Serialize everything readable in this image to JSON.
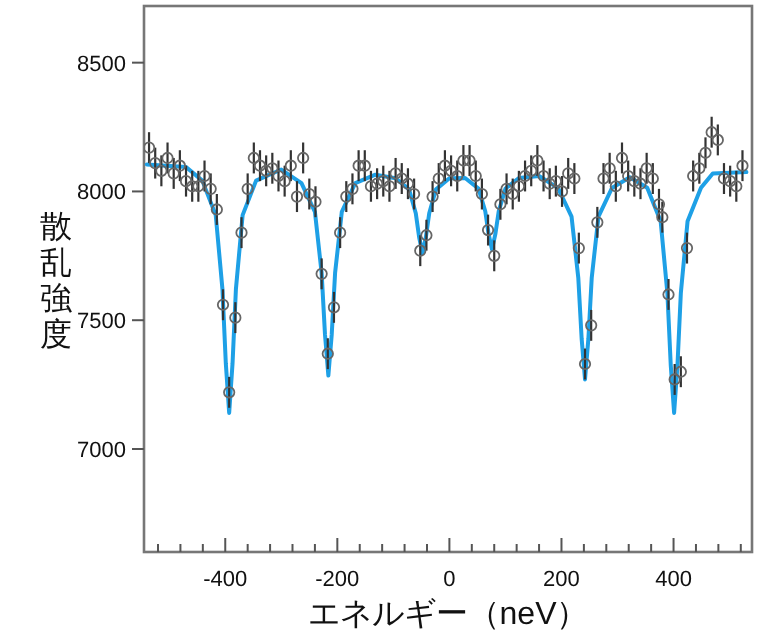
{
  "chart_data": {
    "type": "scatter",
    "xlabel": "エネルギー（neV）",
    "ylabel": "散乱強度",
    "xlim": [
      -545,
      540
    ],
    "ylim": [
      6600,
      8720
    ],
    "xticks": [
      {
        "value": -520,
        "label": null
      },
      {
        "value": -480,
        "label": null
      },
      {
        "value": -440,
        "label": null
      },
      -400,
      {
        "value": -360,
        "label": null
      },
      {
        "value": -320,
        "label": null
      },
      {
        "value": -280,
        "label": null
      },
      {
        "value": -240,
        "label": null
      },
      -200,
      {
        "value": -160,
        "label": null
      },
      {
        "value": -120,
        "label": null
      },
      {
        "value": -80,
        "label": null
      },
      {
        "value": -40,
        "label": null
      },
      0,
      {
        "value": 40,
        "label": null
      },
      {
        "value": 80,
        "label": null
      },
      {
        "value": 120,
        "label": null
      },
      {
        "value": 160,
        "label": null
      },
      200,
      {
        "value": 240,
        "label": null
      },
      {
        "value": 280,
        "label": null
      },
      {
        "value": 320,
        "label": null
      },
      {
        "value": 360,
        "label": null
      },
      400,
      {
        "value": 440,
        "label": null
      },
      {
        "value": 480,
        "label": null
      },
      {
        "value": 520,
        "label": null
      }
    ],
    "yticks": [
      7000,
      7500,
      8000,
      8500
    ],
    "grid": false,
    "series": [
      {
        "type": "line",
        "color": "#1ea0e6",
        "line_style": "solid",
        "marker": "none",
        "x": [
          -540,
          -470,
          -441,
          -417,
          -405,
          -399,
          -393,
          -387,
          -381,
          -369,
          -345,
          -300,
          -264,
          -240,
          -228,
          -222,
          -216,
          -210,
          -204,
          -192,
          -168,
          -132,
          -96,
          -72,
          -60,
          -54,
          -48,
          -42,
          -36,
          -24,
          0,
          28,
          52,
          64,
          70,
          76,
          82,
          88,
          100,
          124,
          160,
          194,
          218,
          230,
          236,
          242,
          248,
          254,
          266,
          290,
          322,
          353,
          377,
          389,
          395,
          401,
          407,
          413,
          425,
          449,
          470,
          530
        ],
        "values": [
          8105,
          8095,
          8042,
          7908,
          7620,
          7332,
          7140,
          7332,
          7620,
          7908,
          8042,
          8085,
          8032,
          7921,
          7683,
          7444,
          7285,
          7444,
          7683,
          7921,
          8032,
          8065,
          8051,
          8008,
          7915,
          7822,
          7760,
          7822,
          7915,
          8008,
          8051,
          8052,
          8011,
          7923,
          7834,
          7775,
          7834,
          7923,
          8011,
          8052,
          8060,
          8013,
          7902,
          7665,
          7428,
          7270,
          7428,
          7665,
          7902,
          8013,
          8055,
          8014,
          7884,
          7605,
          7326,
          7140,
          7326,
          7605,
          7884,
          8014,
          8070,
          8075
        ]
      },
      {
        "color": "#666666",
        "marker": "circle",
        "x": [
          -536,
          -525,
          -514,
          -503,
          -492,
          -481,
          -470,
          -459,
          -448,
          -437,
          -426,
          -415,
          -404,
          -393,
          -382,
          -371,
          -360,
          -349,
          -338,
          -327,
          -316,
          -305,
          -294,
          -283,
          -272,
          -261,
          -250,
          -239,
          -228,
          -217,
          -206,
          -195,
          -184,
          -173,
          -162,
          -151,
          -140,
          -129,
          -118,
          -107,
          -96,
          -85,
          -74,
          -63,
          -52,
          -41,
          -30,
          -19,
          -8,
          3,
          14,
          25,
          36,
          47,
          58,
          69,
          80,
          91,
          102,
          113,
          124,
          135,
          146,
          157,
          168,
          179,
          190,
          201,
          212,
          223,
          231,
          242,
          253,
          264,
          275,
          286,
          297,
          308,
          319,
          330,
          341,
          352,
          363,
          374,
          380,
          391,
          402,
          413,
          424,
          435,
          446,
          457,
          468,
          479,
          490,
          501,
          512,
          523
        ],
        "values": [
          8170,
          8110,
          8080,
          8130,
          8070,
          8100,
          8040,
          8020,
          8020,
          8060,
          8010,
          7930,
          7560,
          7220,
          7510,
          7840,
          8010,
          8130,
          8100,
          8080,
          8090,
          8060,
          8040,
          8100,
          7980,
          8130,
          7990,
          7960,
          7680,
          7370,
          7550,
          7840,
          7980,
          8010,
          8100,
          8100,
          8020,
          8030,
          8040,
          8020,
          8070,
          8050,
          8030,
          7990,
          7770,
          7830,
          7980,
          8050,
          8100,
          8080,
          8060,
          8120,
          8120,
          8060,
          7990,
          7850,
          7750,
          7950,
          8010,
          7990,
          8020,
          8060,
          8080,
          8120,
          8060,
          8030,
          8040,
          8000,
          8070,
          8050,
          7780,
          7330,
          7480,
          7880,
          8050,
          8090,
          8020,
          8130,
          8060,
          8040,
          8030,
          8090,
          8050,
          7950,
          7900,
          7600,
          7270,
          7300,
          7780,
          8060,
          8090,
          8150,
          8230,
          8200,
          8050,
          8040,
          8020,
          8100
        ],
        "errors": [
          60,
          60,
          60,
          60,
          60,
          60,
          60,
          60,
          60,
          60,
          60,
          60,
          60,
          60,
          60,
          60,
          60,
          60,
          60,
          60,
          60,
          60,
          60,
          60,
          60,
          60,
          60,
          60,
          60,
          60,
          60,
          60,
          60,
          60,
          60,
          60,
          60,
          60,
          60,
          60,
          60,
          60,
          60,
          60,
          60,
          60,
          60,
          60,
          60,
          60,
          60,
          60,
          60,
          60,
          60,
          60,
          60,
          60,
          60,
          60,
          60,
          60,
          60,
          60,
          60,
          60,
          60,
          60,
          60,
          60,
          60,
          60,
          60,
          60,
          60,
          60,
          60,
          60,
          60,
          60,
          60,
          60,
          60,
          60,
          60,
          60,
          60,
          60,
          60,
          60,
          60,
          60,
          60,
          60,
          60,
          60,
          60,
          60
        ]
      }
    ]
  }
}
